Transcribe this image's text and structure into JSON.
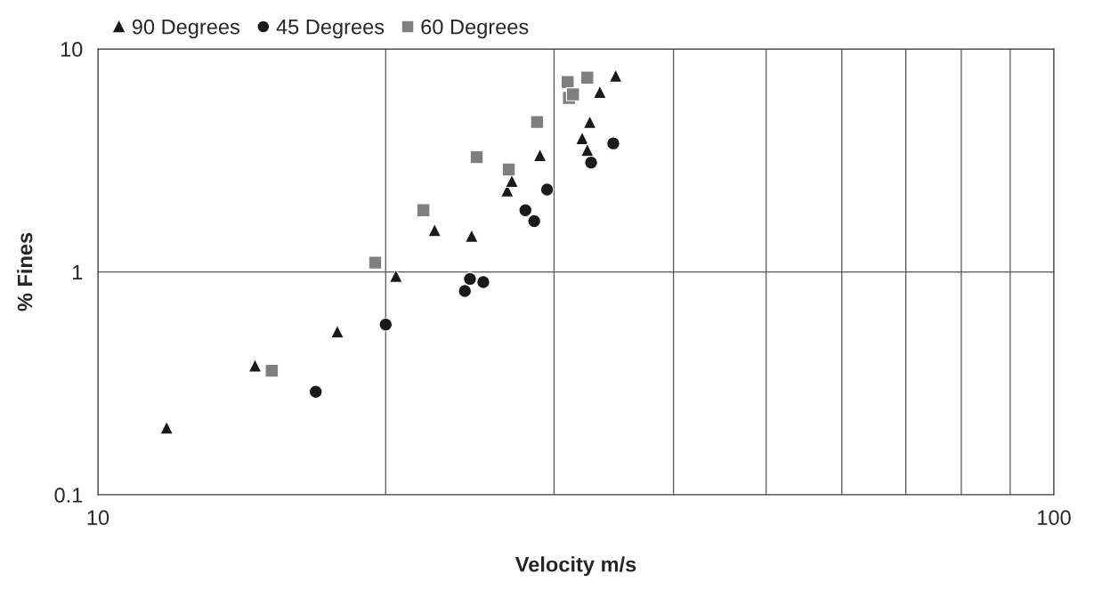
{
  "chart_data": {
    "type": "scatter",
    "xlabel": "Velocity m/s",
    "ylabel": "% Fines",
    "log": "xy",
    "grid": true,
    "legend": "top left",
    "xlim": [
      10,
      100
    ],
    "ylim": [
      0.1,
      10
    ],
    "xticks": [
      10,
      {
        "value": 20,
        "label": null
      },
      {
        "value": 30,
        "label": null
      },
      {
        "value": 40,
        "label": null
      },
      {
        "value": 50,
        "label": null
      },
      {
        "value": 60,
        "label": null
      },
      {
        "value": 70,
        "label": null
      },
      {
        "value": 80,
        "label": null
      },
      {
        "value": 90,
        "label": null
      },
      100
    ],
    "yticks": [
      0.1,
      1,
      10
    ],
    "series": [
      {
        "name": "90 Degrees",
        "color": "#1a1a1a",
        "marker": "triangle",
        "x": [
          11.8,
          14.6,
          17.8,
          20.5,
          22.5,
          24.6,
          26.8,
          27.1,
          29.0,
          32.1,
          32.5,
          32.7,
          33.5,
          34.8
        ],
        "values": [
          0.2,
          0.38,
          0.54,
          0.96,
          1.54,
          1.45,
          2.32,
          2.56,
          3.34,
          3.98,
          3.52,
          4.7,
          6.42,
          7.58
        ]
      },
      {
        "name": "45 Degrees",
        "color": "#1a1a1a",
        "marker": "circle",
        "x": [
          16.9,
          20.0,
          24.2,
          24.5,
          25.3,
          28.0,
          28.6,
          29.5,
          32.8,
          34.6
        ],
        "values": [
          0.29,
          0.58,
          0.82,
          0.93,
          0.9,
          1.89,
          1.69,
          2.34,
          3.09,
          3.77
        ]
      },
      {
        "name": "60 Degrees",
        "color": "#7f7f7f",
        "marker": "square",
        "x": [
          15.2,
          19.5,
          21.9,
          24.9,
          26.9,
          28.8,
          31.0,
          32.5,
          31.1,
          31.4
        ],
        "values": [
          0.36,
          1.1,
          1.89,
          3.27,
          2.88,
          4.7,
          7.1,
          7.43,
          6.03,
          6.26
        ]
      }
    ]
  }
}
